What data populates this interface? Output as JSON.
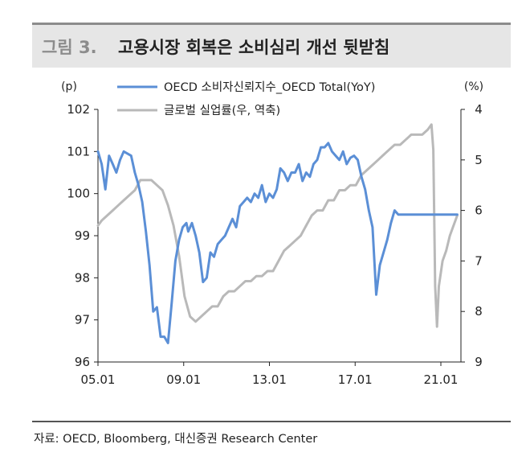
{
  "figure": {
    "number": "그림 3.",
    "title": "고용시장 회복은 소비심리 개선 뒷받침"
  },
  "source": "자료: OECD, Bloomberg, 대신증권 Research Center",
  "colors": {
    "oecd": "#5b8fd6",
    "unemployment": "#b9b9b9"
  },
  "chart_data": {
    "type": "line",
    "xlabel": "",
    "left_axis": {
      "unit": "(p)",
      "range": [
        96,
        102
      ],
      "ticks": [
        "102",
        "101",
        "100",
        "99",
        "98",
        "97",
        "96"
      ]
    },
    "right_axis": {
      "unit": "(%)",
      "range": [
        4,
        9
      ],
      "reversed": true,
      "ticks": [
        "4",
        "5",
        "6",
        "7",
        "8",
        "9"
      ]
    },
    "x_axis": {
      "range": [
        "2005-01",
        "2021-06"
      ],
      "tick_labels": [
        "05.01",
        "09.01",
        "13.01",
        "17.01",
        "21.01"
      ]
    },
    "series": [
      {
        "name": "OECD 소비자신뢰지수_OECD Total(YoY)",
        "axis": "left",
        "x": [
          "2005-01",
          "2005-03",
          "2005-05",
          "2005-07",
          "2005-09",
          "2005-11",
          "2006-01",
          "2006-03",
          "2006-05",
          "2006-07",
          "2006-09",
          "2006-11",
          "2007-01",
          "2007-03",
          "2007-05",
          "2007-07",
          "2007-09",
          "2007-11",
          "2008-01",
          "2008-03",
          "2008-05",
          "2008-07",
          "2008-09",
          "2008-11",
          "2009-01",
          "2009-02",
          "2009-04",
          "2009-06",
          "2009-08",
          "2009-10",
          "2009-12",
          "2010-02",
          "2010-04",
          "2010-06",
          "2010-08",
          "2010-10",
          "2010-12",
          "2011-02",
          "2011-04",
          "2011-06",
          "2011-08",
          "2011-10",
          "2011-12",
          "2012-02",
          "2012-04",
          "2012-06",
          "2012-08",
          "2012-10",
          "2012-12",
          "2013-02",
          "2013-04",
          "2013-06",
          "2013-08",
          "2013-10",
          "2013-12",
          "2014-02",
          "2014-04",
          "2014-06",
          "2014-08",
          "2014-10",
          "2014-12",
          "2015-02",
          "2015-04",
          "2015-06",
          "2015-08",
          "2015-10",
          "2015-12",
          "2016-02",
          "2016-04",
          "2016-06",
          "2016-08",
          "2016-10",
          "2016-12",
          "2017-02",
          "2017-04",
          "2017-06",
          "2017-08",
          "2017-10",
          "2017-12",
          "2018-02",
          "2018-04",
          "2018-06",
          "2018-08",
          "2018-10",
          "2018-12",
          "2019-02",
          "2019-04",
          "2019-06",
          "2019-08",
          "2019-10",
          "2019-12",
          "2020-02",
          "2020-03",
          "2020-04",
          "2020-06",
          "2020-08",
          "2020-10",
          "2020-12",
          "2021-02",
          "2021-04"
        ],
        "values": [
          101.0,
          100.7,
          100.1,
          100.9,
          100.7,
          100.5,
          100.8,
          101.0,
          100.95,
          100.9,
          100.5,
          100.2,
          99.8,
          99.1,
          98.3,
          97.2,
          97.3,
          96.6,
          96.6,
          96.45,
          97.4,
          98.4,
          98.9,
          99.2,
          99.3,
          99.1,
          99.3,
          99.0,
          98.6,
          97.9,
          98.0,
          98.6,
          98.5,
          98.8,
          98.9,
          99.0,
          99.2,
          99.4,
          99.2,
          99.7,
          99.8,
          99.9,
          99.8,
          100.0,
          99.9,
          100.2,
          99.8,
          100.0,
          99.9,
          100.1,
          100.6,
          100.5,
          100.3,
          100.5,
          100.5,
          100.7,
          100.3,
          100.5,
          100.4,
          100.7,
          100.8,
          101.1,
          101.1,
          101.2,
          101.0,
          100.9,
          100.8,
          101.0,
          100.7,
          100.85,
          100.9,
          100.8,
          100.4,
          100.1,
          99.6,
          99.2,
          97.6,
          98.3,
          98.6,
          98.9,
          99.3,
          99.6,
          99.5,
          99.5,
          99.5,
          99.5,
          99.5,
          99.5,
          99.5,
          99.5,
          99.5,
          99.5,
          99.5,
          99.5,
          99.5,
          99.5,
          99.5,
          99.5,
          99.5,
          99.5
        ]
      },
      {
        "name": "글로벌 실업률(우, 역축)",
        "axis": "right",
        "x": [
          "2005-01",
          "2005-03",
          "2005-06",
          "2005-09",
          "2005-12",
          "2006-03",
          "2006-06",
          "2006-09",
          "2006-12",
          "2007-03",
          "2007-06",
          "2007-09",
          "2007-12",
          "2008-03",
          "2008-06",
          "2008-09",
          "2008-12",
          "2009-03",
          "2009-06",
          "2009-09",
          "2009-12",
          "2010-03",
          "2010-06",
          "2010-09",
          "2010-12",
          "2011-03",
          "2011-06",
          "2011-09",
          "2011-12",
          "2012-03",
          "2012-06",
          "2012-09",
          "2012-12",
          "2013-03",
          "2013-06",
          "2013-09",
          "2013-12",
          "2014-03",
          "2014-06",
          "2014-09",
          "2014-12",
          "2015-03",
          "2015-06",
          "2015-09",
          "2015-12",
          "2016-03",
          "2016-06",
          "2016-09",
          "2016-12",
          "2017-03",
          "2017-06",
          "2017-09",
          "2017-12",
          "2018-03",
          "2018-06",
          "2018-09",
          "2018-12",
          "2019-03",
          "2019-06",
          "2019-09",
          "2019-12",
          "2020-02",
          "2020-03",
          "2020-04",
          "2020-05",
          "2020-06",
          "2020-08",
          "2020-10",
          "2020-12",
          "2021-02",
          "2021-04"
        ],
        "values": [
          6.3,
          6.2,
          6.1,
          6.0,
          5.9,
          5.8,
          5.7,
          5.6,
          5.4,
          5.4,
          5.4,
          5.5,
          5.6,
          5.9,
          6.3,
          6.9,
          7.7,
          8.1,
          8.2,
          8.1,
          8.0,
          7.9,
          7.9,
          7.7,
          7.6,
          7.6,
          7.5,
          7.4,
          7.4,
          7.3,
          7.3,
          7.2,
          7.2,
          7.0,
          6.8,
          6.7,
          6.6,
          6.5,
          6.3,
          6.1,
          6.0,
          6.0,
          5.8,
          5.8,
          5.6,
          5.6,
          5.5,
          5.5,
          5.3,
          5.2,
          5.1,
          5.0,
          4.9,
          4.8,
          4.7,
          4.7,
          4.6,
          4.5,
          4.5,
          4.5,
          4.4,
          4.3,
          4.8,
          7.5,
          8.3,
          7.5,
          7.0,
          6.8,
          6.5,
          6.3,
          6.1
        ]
      }
    ],
    "grid": false,
    "legend": "top-center"
  }
}
